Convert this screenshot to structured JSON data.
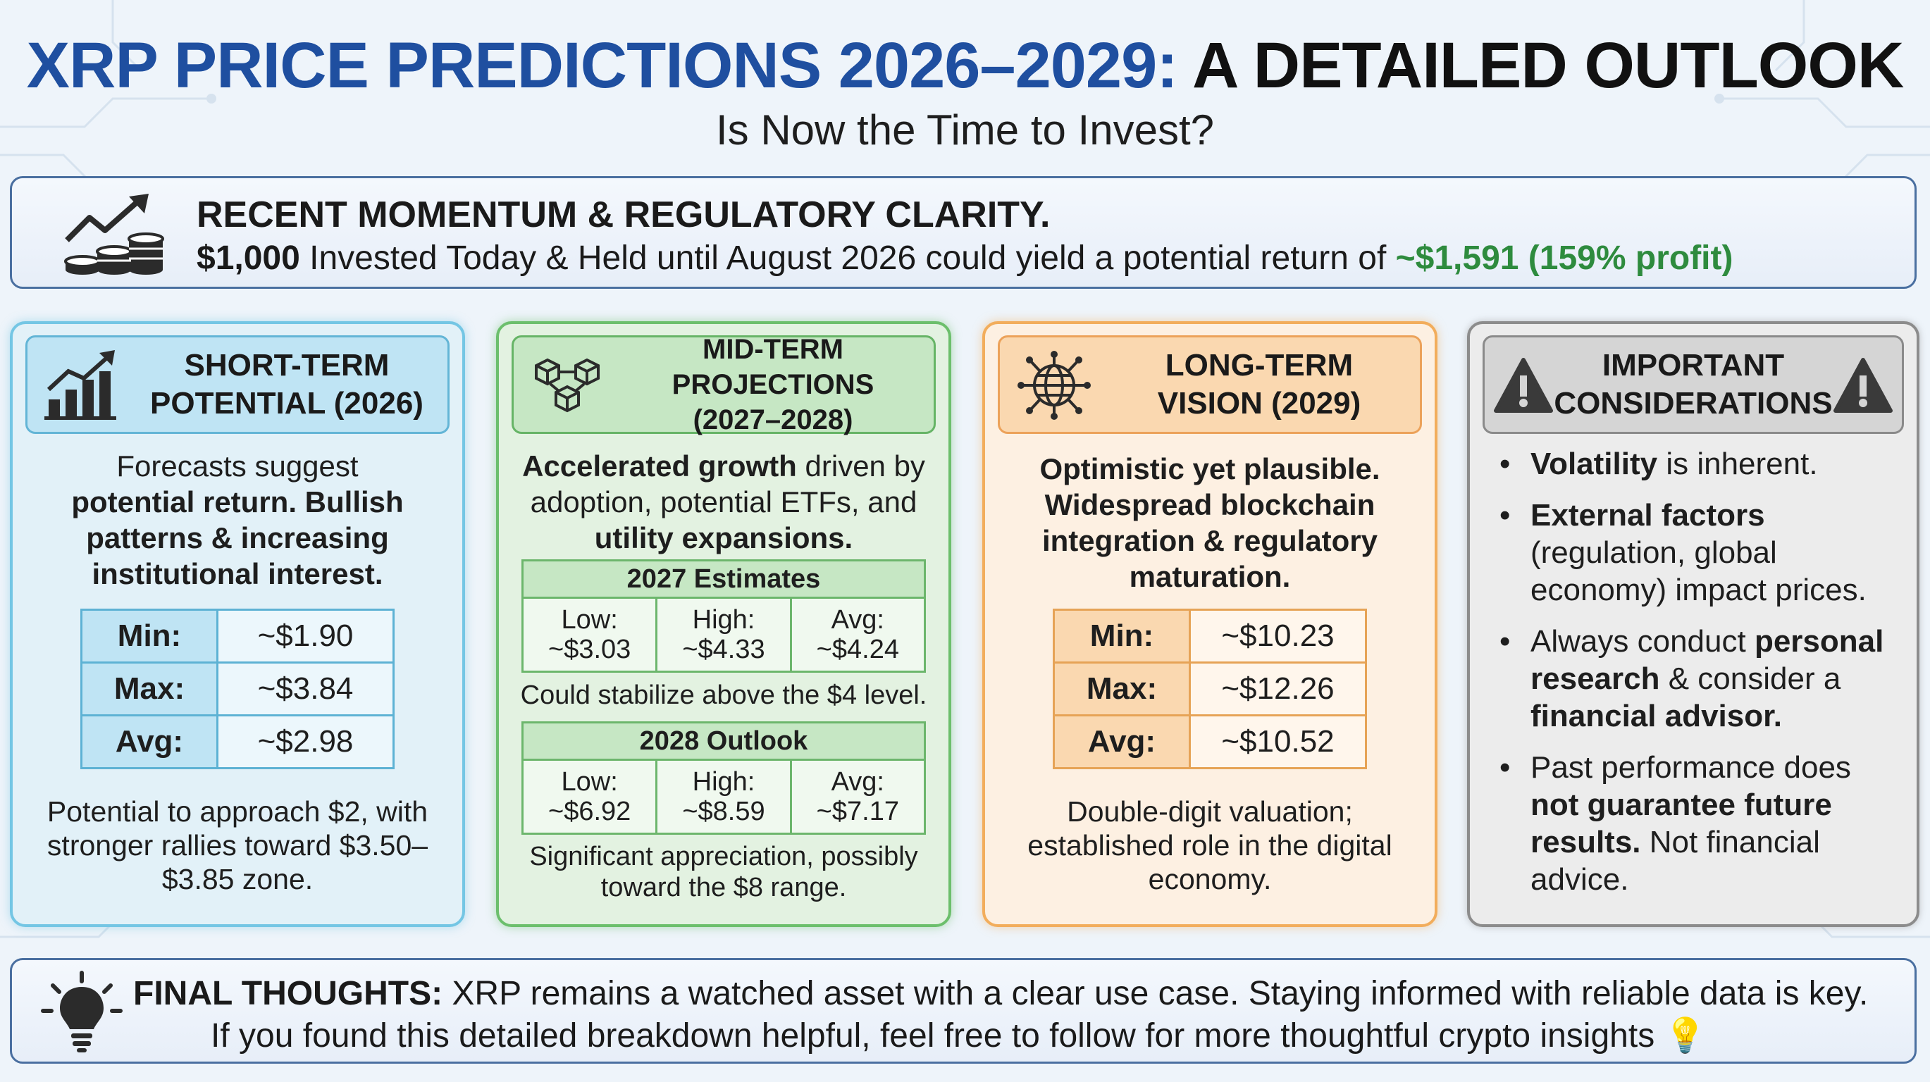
{
  "header": {
    "title_part1": "XRP PRICE PREDICTIONS 2026–2029:",
    "title_part2": "A DETAILED OUTLOOK",
    "subtitle": "Is Now the Time to Invest?"
  },
  "momentum": {
    "icon": "coins-chart-icon",
    "heading": "RECENT MOMENTUM & REGULATORY CLARITY.",
    "amount": "$1,000",
    "text": " Invested Today & Held until August 2026 could yield a potential return of ",
    "return": "~$1,591 (159% profit)"
  },
  "short_term": {
    "icon": "bar-chart-up-icon",
    "title_l1": "SHORT-TERM",
    "title_l2": "POTENTIAL (2026)",
    "intro_plain": "Forecasts suggest",
    "intro_bold": "potential return. Bullish patterns & increasing institutional interest.",
    "stats": [
      {
        "label": "Min:",
        "value": "~$1.90"
      },
      {
        "label": "Max:",
        "value": "~$3.84"
      },
      {
        "label": "Avg:",
        "value": "~$2.98"
      }
    ],
    "footer": "Potential to approach $2, with stronger rallies toward $3.50–$3.85 zone."
  },
  "mid_term": {
    "icon": "blockchain-cubes-icon",
    "title_l1": "MID-TERM PROJECTIONS",
    "title_l2": "(2027–2028)",
    "intro_bold1": "Accelerated growth",
    "intro_plain1": " driven by adoption, potential ETFs, and ",
    "intro_bold2": "utility expansions.",
    "est_2027": {
      "heading": "2027 Estimates",
      "cells": [
        {
          "label": "Low:",
          "value": "~$3.03"
        },
        {
          "label": "High:",
          "value": "~$4.33"
        },
        {
          "label": "Avg:",
          "value": "~$4.24"
        }
      ],
      "note": "Could stabilize above the $4 level."
    },
    "est_2028": {
      "heading": "2028 Outlook",
      "cells": [
        {
          "label": "Low:",
          "value": "~$6.92"
        },
        {
          "label": "High:",
          "value": "~$8.59"
        },
        {
          "label": "Avg:",
          "value": "~$7.17"
        }
      ],
      "note": "Significant appreciation, possibly toward the $8 range."
    }
  },
  "long_term": {
    "icon": "globe-network-icon",
    "title_l1": "LONG-TERM",
    "title_l2": "VISION (2029)",
    "intro_bold": "Optimistic yet plausible. Widespread blockchain integration & regulatory maturation.",
    "stats": [
      {
        "label": "Min:",
        "value": "~$10.23"
      },
      {
        "label": "Max:",
        "value": "~$12.26"
      },
      {
        "label": "Avg:",
        "value": "~$10.52"
      }
    ],
    "footer": "Double-digit valuation; established role in the digital economy."
  },
  "considerations": {
    "icon": "warning-triangle-icon",
    "title_l1": "IMPORTANT",
    "title_l2": "CONSIDERATIONS",
    "items": [
      {
        "bold": "Volatility",
        "text": " is inherent.",
        "bold2": "",
        "text2": "",
        "bold3": "",
        "text3": ""
      },
      {
        "bold": "External factors",
        "text": " (regulation, global economy) impact prices.",
        "bold2": "",
        "text2": "",
        "bold3": "",
        "text3": ""
      },
      {
        "bold": "",
        "text": "Always conduct ",
        "bold2": "personal research",
        "text2": " & consider a ",
        "bold3": "financial advisor.",
        "text3": ""
      },
      {
        "bold": "",
        "text": "Past performance does ",
        "bold2": "not guarantee future results.",
        "text2": " Not financial advice.",
        "bold3": "",
        "text3": ""
      }
    ]
  },
  "final": {
    "icon": "lightbulb-icon",
    "label": "FINAL THOUGHTS:",
    "line1": " XRP remains a watched asset with a clear use case. Staying informed with reliable data is key.",
    "line2": "If you found this detailed breakdown helpful, feel free to follow for more thoughtful crypto insights 💡"
  }
}
